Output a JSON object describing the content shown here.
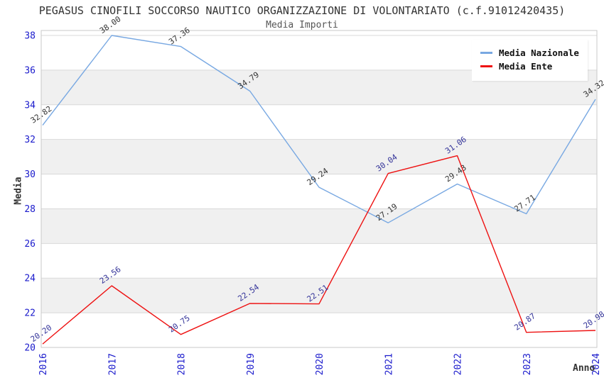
{
  "header": {
    "title": "PEGASUS CINOFILI SOCCORSO NAUTICO ORGANIZZAZIONE DI VOLONTARIATO (c.f.91012420435)",
    "subtitle": "Media Importi"
  },
  "chart_data": {
    "type": "line",
    "title": "PEGASUS CINOFILI SOCCORSO NAUTICO ORGANIZZAZIONE DI VOLONTARIATO (c.f.91012420435)",
    "subtitle": "Media Importi",
    "xlabel": "Anno",
    "ylabel": "Media",
    "x": [
      2016,
      2017,
      2018,
      2019,
      2020,
      2021,
      2022,
      2023,
      2024
    ],
    "series": [
      {
        "name": "Media Nazionale",
        "color": "#78a8e2",
        "label_color": "#333333",
        "values": [
          32.82,
          38.0,
          37.36,
          34.79,
          29.24,
          27.19,
          29.43,
          27.71,
          34.32
        ]
      },
      {
        "name": "Media Ente",
        "color": "#ee1111",
        "label_color": "#333399",
        "values": [
          20.2,
          23.56,
          20.75,
          22.54,
          22.51,
          30.04,
          31.06,
          20.87,
          20.98
        ]
      }
    ],
    "ylim": [
      20,
      38
    ],
    "ytick_step": 2,
    "grid": true,
    "legend_position": "top-right",
    "colors": {
      "band_fill": "#f0f0f0",
      "grid_line": "#d9d9d9",
      "plot_border": "#c8c8c8",
      "tick_label": "#1a1acc"
    }
  }
}
